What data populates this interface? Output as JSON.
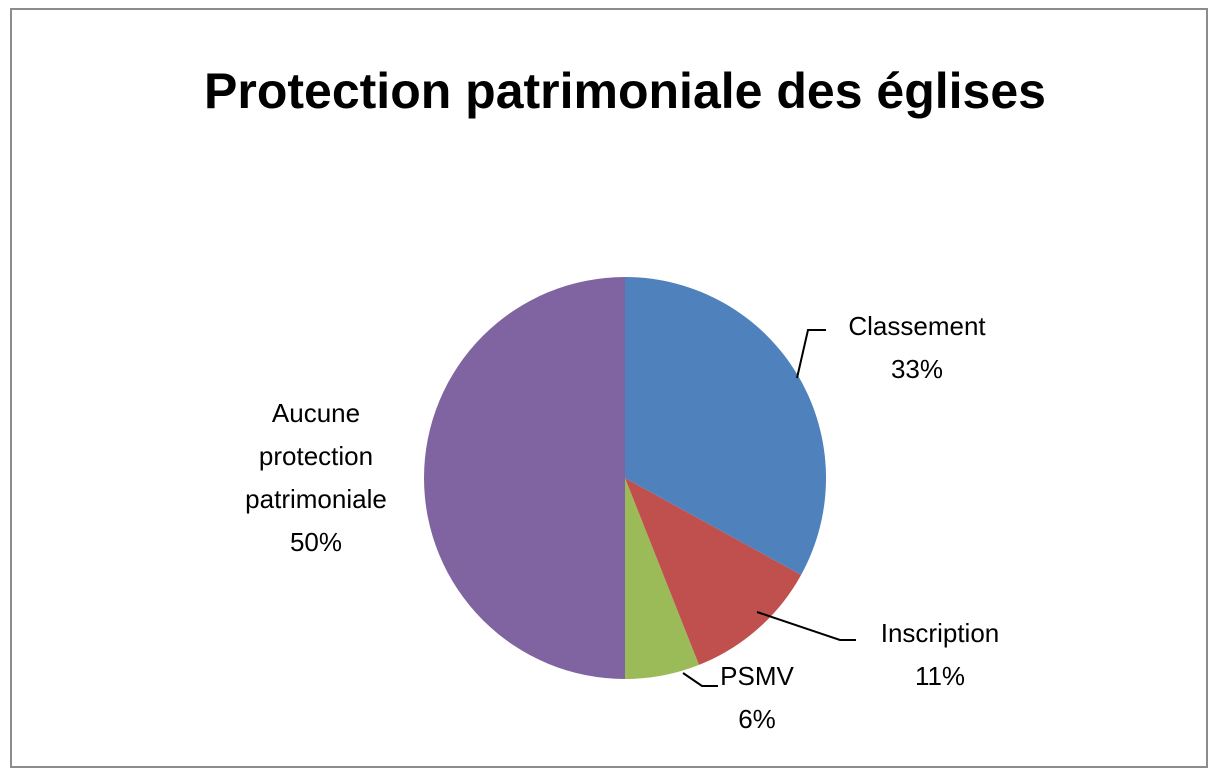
{
  "chart_data": {
    "type": "pie",
    "title": "Protection patrimoniale des églises",
    "categories": [
      "Classement",
      "Inscription",
      "PSMV",
      "Aucune protection patrimoniale"
    ],
    "values": [
      33,
      11,
      6,
      50
    ],
    "value_labels": [
      "33%",
      "11%",
      "6%",
      "50%"
    ],
    "colors": [
      "#4f81bd",
      "#c0504d",
      "#9bbb59",
      "#8064a2"
    ]
  }
}
